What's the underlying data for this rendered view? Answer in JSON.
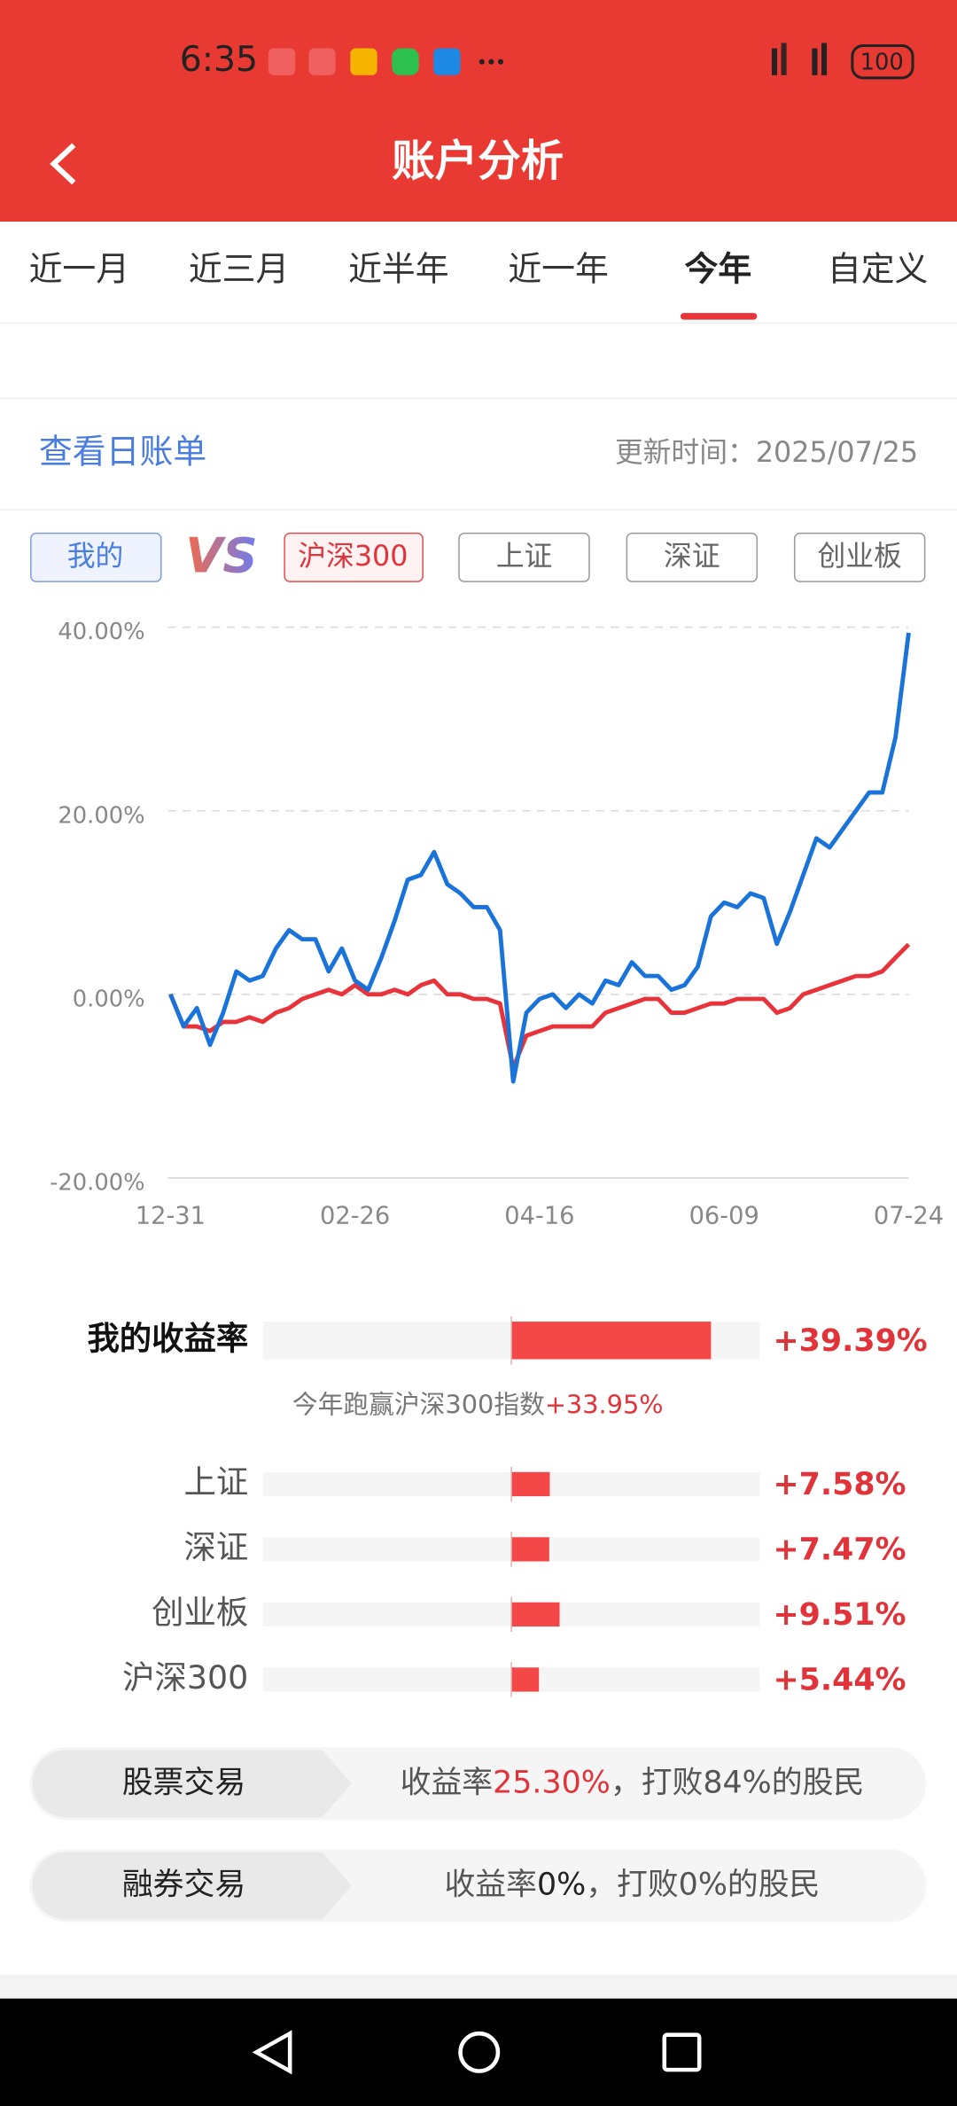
{
  "status_bar": {
    "time": "6:35",
    "battery": "100"
  },
  "header": {
    "title": "账户分析"
  },
  "tabs": {
    "items": [
      "近一月",
      "近三月",
      "近半年",
      "近一年",
      "今年",
      "自定义"
    ],
    "active": 4
  },
  "bill": {
    "link": "查看日账单",
    "update_label": "更新时间：",
    "update_date": "2025/07/25"
  },
  "compare_buttons": {
    "vs": "VS",
    "others": [
      "上证",
      "深证",
      "创业板"
    ]
  },
  "chart_data": {
    "type": "line",
    "categories": [
      "12-31",
      null,
      null,
      null,
      null,
      null,
      null,
      null,
      null,
      null,
      null,
      null,
      null,
      null,
      "02-26",
      null,
      null,
      null,
      null,
      null,
      null,
      null,
      null,
      null,
      null,
      null,
      null,
      null,
      "04-16",
      null,
      null,
      null,
      null,
      null,
      null,
      null,
      null,
      null,
      null,
      null,
      null,
      null,
      "06-09",
      null,
      null,
      null,
      null,
      null,
      null,
      null,
      null,
      null,
      null,
      null,
      null,
      null,
      "07-24"
    ],
    "series": [
      {
        "name": "我的",
        "color": "#1a73d9",
        "values": [
          0,
          -3.5,
          -1.5,
          -5.5,
          -2,
          2.5,
          1.5,
          2,
          5,
          7,
          6,
          6,
          2.5,
          5,
          1.5,
          0.5,
          4,
          8,
          12.5,
          13,
          15.5,
          12,
          11,
          9.5,
          9.5,
          7,
          -9.5,
          -2,
          -0.5,
          0,
          -1.5,
          0,
          -1,
          1.5,
          1,
          3.5,
          2,
          2,
          0.5,
          1,
          3,
          8.5,
          10,
          9.5,
          11,
          10.5,
          5.5,
          9,
          13,
          17,
          16,
          18,
          20,
          22,
          22,
          28,
          39.39
        ]
      },
      {
        "name": "沪深300",
        "color": "#e8333a",
        "values": [
          0,
          -3.5,
          -3.5,
          -4,
          -3,
          -3,
          -2.5,
          -3,
          -2,
          -1.5,
          -0.5,
          0,
          0.5,
          0,
          1,
          0,
          0,
          0.5,
          0,
          1,
          1.5,
          0,
          0,
          -0.5,
          -0.5,
          -1,
          -8,
          -4.5,
          -4,
          -3.5,
          -3.5,
          -3.5,
          -3.5,
          -2,
          -1.5,
          -1,
          -0.5,
          -0.5,
          -2,
          -2,
          -1.5,
          -1,
          -1,
          -0.5,
          -0.5,
          -0.5,
          -2,
          -1.5,
          0,
          0.5,
          1,
          1.5,
          2,
          2,
          2.5,
          4,
          5.44
        ]
      }
    ],
    "ylim": [
      -20,
      40
    ],
    "yticks": [
      {
        "value": -20,
        "label": "-20.00%"
      },
      {
        "value": 0,
        "label": "0.00%"
      },
      {
        "value": 20,
        "label": "20.00%"
      },
      {
        "value": 40,
        "label": "40.00%"
      }
    ],
    "grid": true
  },
  "returns": {
    "my_label": "我的收益率",
    "my_value": 39.39,
    "my_value_label": "+39.39%",
    "beat_text": "今年跑赢沪深300指数",
    "beat_value": "+33.95%",
    "categories": [
      "上证",
      "深证",
      "创业板",
      "沪深300"
    ],
    "values": [
      7.58,
      7.47,
      9.51,
      5.44
    ],
    "value_labels": [
      "+7.58%",
      "+7.47%",
      "+9.51%",
      "+5.44%"
    ],
    "xlim": [
      -49,
      49
    ],
    "color": "#f44848"
  },
  "trades": [
    {
      "name": "股票交易",
      "rate_label": "收益率",
      "rate": "25.30%",
      "rest": "，打败84%的股民"
    },
    {
      "name": "融券交易",
      "rate_label": "收益率",
      "rate": "0%",
      "rest": "，打败0%的股民"
    }
  ]
}
